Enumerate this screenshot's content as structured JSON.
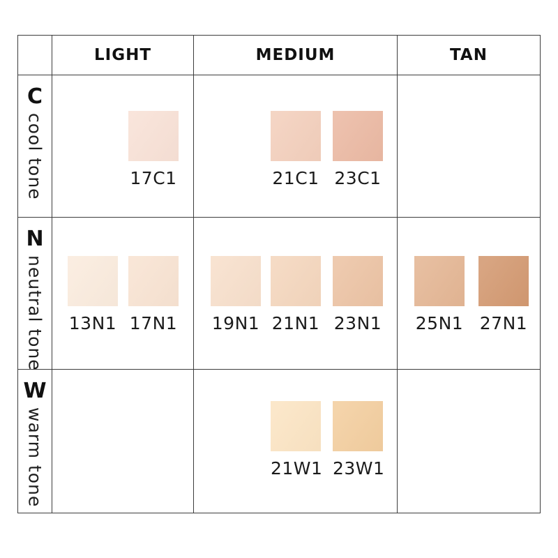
{
  "table": {
    "column_headers": [
      "LIGHT",
      "MEDIUM",
      "TAN"
    ],
    "rows": [
      {
        "letter": "C",
        "tone": "cool tone"
      },
      {
        "letter": "N",
        "tone": "neutral tone"
      },
      {
        "letter": "W",
        "tone": "warm tone"
      }
    ]
  },
  "swatches": [
    {
      "code": "17C1",
      "row": "C",
      "column": "LIGHT",
      "color": "#F8E1D6"
    },
    {
      "code": "21C1",
      "row": "C",
      "column": "MEDIUM",
      "color": "#F3CFBC"
    },
    {
      "code": "23C1",
      "row": "C",
      "column": "MEDIUM",
      "color": "#EBB9A3"
    },
    {
      "code": "13N1",
      "row": "N",
      "column": "LIGHT",
      "color": "#FAEBDD"
    },
    {
      "code": "17N1",
      "row": "N",
      "column": "LIGHT",
      "color": "#F8E3D2"
    },
    {
      "code": "19N1",
      "row": "N",
      "column": "MEDIUM",
      "color": "#F7DFCB"
    },
    {
      "code": "21N1",
      "row": "N",
      "column": "MEDIUM",
      "color": "#F4D6BD"
    },
    {
      "code": "23N1",
      "row": "N",
      "column": "MEDIUM",
      "color": "#ECC3A4"
    },
    {
      "code": "25N1",
      "row": "N",
      "column": "TAN",
      "color": "#E4B694"
    },
    {
      "code": "27N1",
      "row": "N",
      "column": "TAN",
      "color": "#D39971"
    },
    {
      "code": "21W1",
      "row": "W",
      "column": "MEDIUM",
      "color": "#FBE4C3"
    },
    {
      "code": "23W1",
      "row": "W",
      "column": "MEDIUM",
      "color": "#F3CE9F"
    }
  ],
  "grid_line_color": "#3c3c3c"
}
